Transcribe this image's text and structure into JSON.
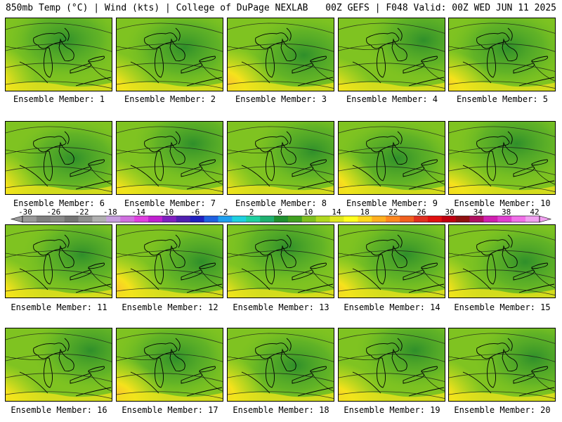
{
  "header": {
    "left": "850mb Temp (°C) | Wind (kts) | College of DuPage NEXLAB",
    "right": "00Z GEFS | F048 Valid: 00Z WED JUN 11 2025"
  },
  "panels": [
    {
      "label": "Ensemble Member: 1"
    },
    {
      "label": "Ensemble Member: 2"
    },
    {
      "label": "Ensemble Member: 3"
    },
    {
      "label": "Ensemble Member: 4"
    },
    {
      "label": "Ensemble Member: 5"
    },
    {
      "label": "Ensemble Member: 6"
    },
    {
      "label": "Ensemble Member: 7"
    },
    {
      "label": "Ensemble Member: 8"
    },
    {
      "label": "Ensemble Member: 9"
    },
    {
      "label": "Ensemble Member: 10"
    },
    {
      "label": "Ensemble Member: 11"
    },
    {
      "label": "Ensemble Member: 12"
    },
    {
      "label": "Ensemble Member: 13"
    },
    {
      "label": "Ensemble Member: 14"
    },
    {
      "label": "Ensemble Member: 15"
    },
    {
      "label": "Ensemble Member: 16"
    },
    {
      "label": "Ensemble Member: 17"
    },
    {
      "label": "Ensemble Member: 18"
    },
    {
      "label": "Ensemble Member: 19"
    },
    {
      "label": "Ensemble Member: 20"
    }
  ],
  "colorbar": {
    "labels": [
      "-30",
      "-26",
      "-22",
      "-18",
      "-14",
      "-10",
      "-6",
      "-2",
      "2",
      "6",
      "10",
      "14",
      "18",
      "22",
      "26",
      "30",
      "34",
      "38",
      "42"
    ],
    "colors": [
      "#9a9a9a",
      "#7f7f7f",
      "#8a8a8a",
      "#757575",
      "#8f8f8f",
      "#b0b0b0",
      "#c8a0e0",
      "#d070e0",
      "#e040e0",
      "#c020d0",
      "#8020c0",
      "#5020b0",
      "#2020c0",
      "#2060e0",
      "#20a0f0",
      "#20d0e0",
      "#20d0a0",
      "#20b070",
      "#209030",
      "#40a020",
      "#80c020",
      "#b0d820",
      "#e0e820",
      "#ffff20",
      "#ffd820",
      "#ffb020",
      "#ff8820",
      "#f06020",
      "#e03020",
      "#e01010",
      "#c00010",
      "#901010",
      "#b01060",
      "#d020b0",
      "#e040d0",
      "#f070e8",
      "#f0a0f0"
    ]
  }
}
